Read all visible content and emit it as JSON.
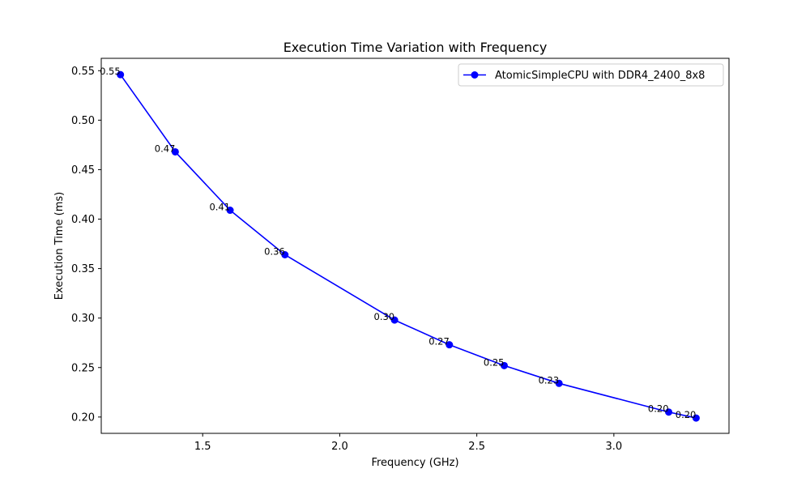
{
  "chart_data": {
    "type": "line",
    "title": "Execution Time Variation with Frequency",
    "xlabel": "Frequency (GHz)",
    "ylabel": "Execution Time (ms)",
    "xlim": [
      1.13,
      3.42
    ],
    "ylim": [
      0.1835,
      0.5625
    ],
    "xticks": [
      1.5,
      2.0,
      2.5,
      3.0
    ],
    "xtick_labels": [
      "1.5",
      "2.0",
      "2.5",
      "3.0"
    ],
    "yticks": [
      0.2,
      0.25,
      0.3,
      0.35,
      0.4,
      0.45,
      0.5,
      0.55
    ],
    "ytick_labels": [
      "0.20",
      "0.25",
      "0.30",
      "0.35",
      "0.40",
      "0.45",
      "0.50",
      "0.55"
    ],
    "grid": false,
    "legend_position": "top-right",
    "series": [
      {
        "name": "AtomicSimpleCPU with DDR4_2400_8x8",
        "color": "#0000ff",
        "x": [
          1.2,
          1.4,
          1.6,
          1.8,
          2.2,
          2.4,
          2.6,
          2.8,
          3.2,
          3.3
        ],
        "y": [
          0.546,
          0.468,
          0.409,
          0.364,
          0.298,
          0.273,
          0.252,
          0.234,
          0.205,
          0.199
        ],
        "labels": [
          "0.55",
          "0.47",
          "0.41",
          "0.36",
          "0.30",
          "0.27",
          "0.25",
          "0.23",
          "0.20",
          "0.20"
        ]
      }
    ]
  }
}
